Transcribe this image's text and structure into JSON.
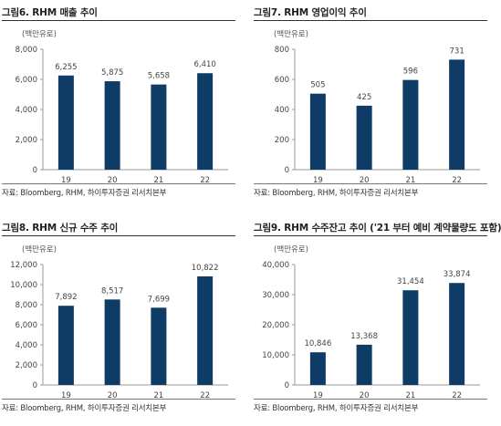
{
  "colors": {
    "bar": "#0e3c66",
    "axis": "#999999"
  },
  "chart_data": [
    {
      "type": "bar",
      "title": "그림6. RHM 매출 추이",
      "unit": "(백만유로)",
      "categories": [
        "19",
        "20",
        "21",
        "22"
      ],
      "values": [
        6255,
        5875,
        5658,
        6410
      ],
      "value_labels": [
        "6,255",
        "5,875",
        "5,658",
        "6,410"
      ],
      "yticks": [
        "0",
        "2,000",
        "4,000",
        "6,000",
        "8,000"
      ],
      "ylim": [
        0,
        8000
      ],
      "source": "자료: Bloomberg, RHM, 하이투자증권 리서치본부"
    },
    {
      "type": "bar",
      "title": "그림7. RHM 영업이익 추이",
      "unit": "(백만유로)",
      "categories": [
        "19",
        "20",
        "21",
        "22"
      ],
      "values": [
        505,
        425,
        596,
        731
      ],
      "value_labels": [
        "505",
        "425",
        "596",
        "731"
      ],
      "yticks": [
        "0",
        "200",
        "400",
        "600",
        "800"
      ],
      "ylim": [
        0,
        800
      ],
      "source": "자료: Bloomberg, RHM, 하이투자증권 리서치본부"
    },
    {
      "type": "bar",
      "title": "그림8. RHM 신규 수주 추이",
      "unit": "(백만유로)",
      "categories": [
        "19",
        "20",
        "21",
        "22"
      ],
      "values": [
        7892,
        8517,
        7699,
        10822
      ],
      "value_labels": [
        "7,892",
        "8,517",
        "7,699",
        "10,822"
      ],
      "yticks": [
        "0",
        "2,000",
        "4,000",
        "6,000",
        "8,000",
        "10,000",
        "12,000"
      ],
      "ylim": [
        0,
        12000
      ],
      "source": "자료: Bloomberg, RHM, 하이투자증권 리서치본부"
    },
    {
      "type": "bar",
      "title": "그림9. RHM 수주잔고 추이 ('21 부터 예비 계약물량도 포함)",
      "unit": "(백만유로)",
      "categories": [
        "19",
        "20",
        "21",
        "22"
      ],
      "values": [
        10846,
        13368,
        31454,
        33874
      ],
      "value_labels": [
        "10,846",
        "13,368",
        "31,454",
        "33,874"
      ],
      "yticks": [
        "0",
        "10,000",
        "20,000",
        "30,000",
        "40,000"
      ],
      "ylim": [
        0,
        40000
      ],
      "source": "자료: Bloomberg, RHM, 하이투자증권 리서치본부"
    }
  ]
}
